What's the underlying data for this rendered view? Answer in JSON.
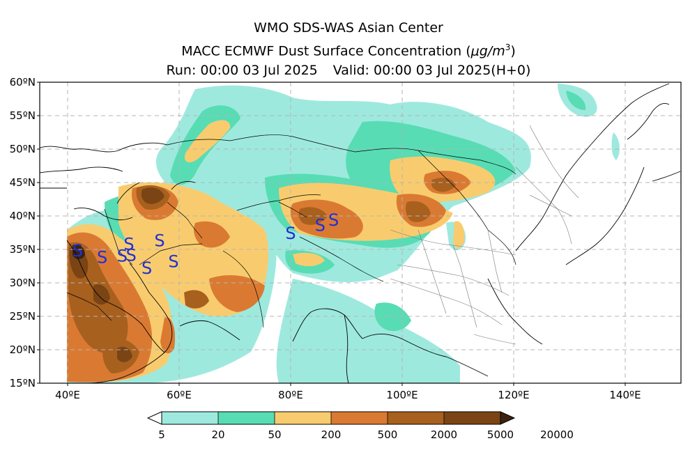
{
  "header": {
    "title": "WMO SDS-WAS Asian Center",
    "subtitle_prefix": "MACC ECMWF Dust Surface Concentration (",
    "subtitle_unit": "μg/m",
    "subtitle_exp": "3",
    "subtitle_suffix": ")",
    "run": "Run: 00:00 03 Jul 2025",
    "valid": "Valid: 00:00 03 Jul 2025(H+0)"
  },
  "map": {
    "lon_range": [
      35,
      150
    ],
    "lat_range": [
      15,
      60
    ],
    "lon_ticks": [
      {
        "value": 40,
        "label": "40ºE"
      },
      {
        "value": 60,
        "label": "60ºE"
      },
      {
        "value": 80,
        "label": "80ºE"
      },
      {
        "value": 100,
        "label": "100ºE"
      },
      {
        "value": 120,
        "label": "120ºE"
      },
      {
        "value": 140,
        "label": "140ºE"
      }
    ],
    "lat_ticks": [
      {
        "value": 15,
        "label": "15ºN"
      },
      {
        "value": 20,
        "label": "20ºN"
      },
      {
        "value": 25,
        "label": "25ºN"
      },
      {
        "value": 30,
        "label": "30ºN"
      },
      {
        "value": 35,
        "label": "35ºN"
      },
      {
        "value": 40,
        "label": "40ºN"
      },
      {
        "value": 45,
        "label": "45ºN"
      },
      {
        "value": 50,
        "label": "50ºN"
      },
      {
        "value": 55,
        "label": "55ºN"
      },
      {
        "value": 60,
        "label": "60ºN"
      }
    ],
    "gridlines": true,
    "dust_symbol": "S",
    "dust_symbol_color": "#1f2fd6",
    "dust_stations": [
      {
        "lon": 41.8,
        "lat": 34.8
      },
      {
        "lon": 46.2,
        "lat": 33.8
      },
      {
        "lon": 49.8,
        "lat": 34.0
      },
      {
        "lon": 51.4,
        "lat": 34.1
      },
      {
        "lon": 51.0,
        "lat": 35.8
      },
      {
        "lon": 54.2,
        "lat": 32.2
      },
      {
        "lon": 56.5,
        "lat": 36.3
      },
      {
        "lon": 59.0,
        "lat": 33.2
      },
      {
        "lon": 80.0,
        "lat": 37.4
      },
      {
        "lon": 85.3,
        "lat": 38.6
      },
      {
        "lon": 87.7,
        "lat": 39.4
      }
    ]
  },
  "colorbar": {
    "levels": [
      "5",
      "20",
      "50",
      "200",
      "500",
      "2000",
      "5000",
      "20000"
    ],
    "colors": [
      "#ffffff",
      "#9ee9de",
      "#58dcb4",
      "#f8cc6e",
      "#da7a32",
      "#a8601e",
      "#7a4414",
      "#3a2212"
    ]
  }
}
